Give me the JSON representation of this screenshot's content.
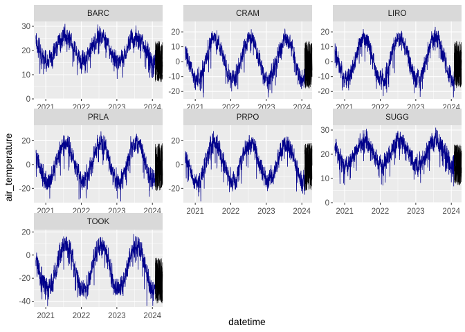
{
  "figure": {
    "xlabel": "datetime",
    "ylabel": "air_temperature"
  },
  "chart_data": {
    "type": "line",
    "facet": "small-multiples, 3 columns",
    "xlabel": "datetime",
    "ylabel": "air_temperature",
    "x_range": [
      "2020-09-01",
      "2024-04-15"
    ],
    "x_ticks": [
      "2021",
      "2022",
      "2023",
      "2024"
    ],
    "grid": true,
    "colors": {
      "observed": "#00008B",
      "forecast": "#000000",
      "panel_bg": "#EBEBEB",
      "strip_bg": "#D9D9D9",
      "grid": "#FFFFFF"
    },
    "panels": [
      {
        "name": "BARC",
        "ylim": [
          0,
          32
        ],
        "yticks": [
          0,
          10,
          20,
          30
        ],
        "series": {
          "mean": 21,
          "amplitude": 5,
          "peak_month": 7,
          "noise": 4,
          "observed_end": "2024-01-31",
          "forecast_end": "2024-04-15",
          "forecast_range": [
            7,
            24
          ]
        }
      },
      {
        "name": "CRAM",
        "ylim": [
          -25,
          27
        ],
        "yticks": [
          -20,
          -10,
          0,
          10,
          20
        ],
        "series": {
          "mean": 2,
          "amplitude": 14,
          "peak_month": 7,
          "noise": 6,
          "observed_end": "2024-01-31",
          "forecast_end": "2024-04-15",
          "forecast_range": [
            -18,
            14
          ]
        }
      },
      {
        "name": "LIRO",
        "ylim": [
          -25,
          27
        ],
        "yticks": [
          -20,
          -10,
          0,
          10,
          20
        ],
        "series": {
          "mean": 2,
          "amplitude": 14,
          "peak_month": 7,
          "noise": 6,
          "observed_end": "2024-01-31",
          "forecast_end": "2024-04-15",
          "forecast_range": [
            -18,
            14
          ]
        }
      },
      {
        "name": "PRLA",
        "ylim": [
          -32,
          33
        ],
        "yticks": [
          -20,
          0,
          20
        ],
        "series": {
          "mean": 2,
          "amplitude": 16,
          "peak_month": 7,
          "noise": 8,
          "observed_end": "2024-01-31",
          "forecast_end": "2024-04-15",
          "forecast_range": [
            -22,
            18
          ]
        }
      },
      {
        "name": "PRPO",
        "ylim": [
          -32,
          33
        ],
        "yticks": [
          -20,
          0,
          20
        ],
        "series": {
          "mean": 2,
          "amplitude": 16,
          "peak_month": 7,
          "noise": 8,
          "observed_end": "2024-01-31",
          "forecast_end": "2024-04-15",
          "forecast_range": [
            -22,
            18
          ]
        }
      },
      {
        "name": "SUGG",
        "ylim": [
          0,
          32
        ],
        "yticks": [
          0,
          10,
          20,
          30
        ],
        "series": {
          "mean": 21,
          "amplitude": 5,
          "peak_month": 7,
          "noise": 4,
          "observed_end": "2024-01-31",
          "forecast_end": "2024-04-15",
          "forecast_range": [
            7,
            24
          ]
        }
      },
      {
        "name": "TOOK",
        "ylim": [
          -45,
          22
        ],
        "yticks": [
          -40,
          -20,
          0,
          20
        ],
        "series": {
          "mean": -11,
          "amplitude": 20,
          "peak_month": 7,
          "noise": 9,
          "observed_end": "2024-01-31",
          "forecast_end": "2024-04-15",
          "forecast_range": [
            -42,
            -2
          ]
        }
      }
    ]
  }
}
